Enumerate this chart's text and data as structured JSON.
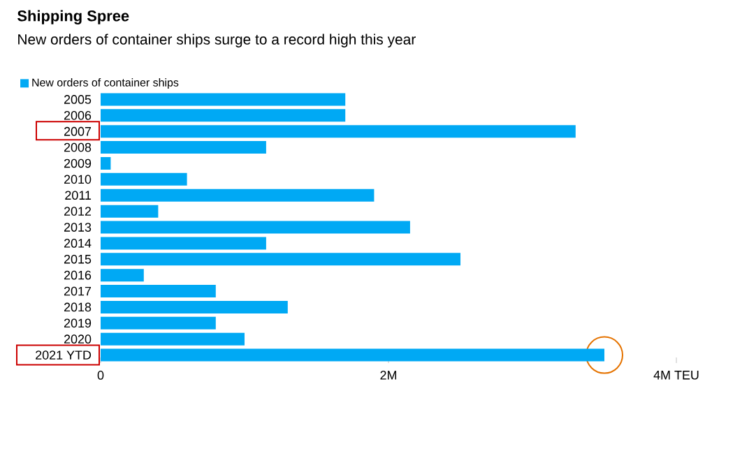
{
  "chart_data": {
    "type": "bar",
    "orientation": "horizontal",
    "title": "Shipping Spree",
    "subtitle": "New orders of container ships surge to a record high this year",
    "categories": [
      "2005",
      "2006",
      "2007",
      "2008",
      "2009",
      "2010",
      "2011",
      "2012",
      "2013",
      "2014",
      "2015",
      "2016",
      "2017",
      "2018",
      "2019",
      "2020",
      "2021 YTD"
    ],
    "series": [
      {
        "name": "New orders of container ships",
        "color": "#00a9f4",
        "values": [
          1.7,
          1.7,
          3.3,
          1.15,
          0.07,
          0.6,
          1.9,
          0.4,
          2.15,
          1.15,
          2.5,
          0.3,
          0.8,
          1.3,
          0.8,
          1.0,
          3.5
        ]
      }
    ],
    "xlim": [
      0,
      4
    ],
    "xticks": [
      0,
      {
        "value": 2,
        "label": "2M"
      },
      {
        "value": 4,
        "label": "4M TEU"
      }
    ],
    "grid": false,
    "legend": "top left"
  }
}
